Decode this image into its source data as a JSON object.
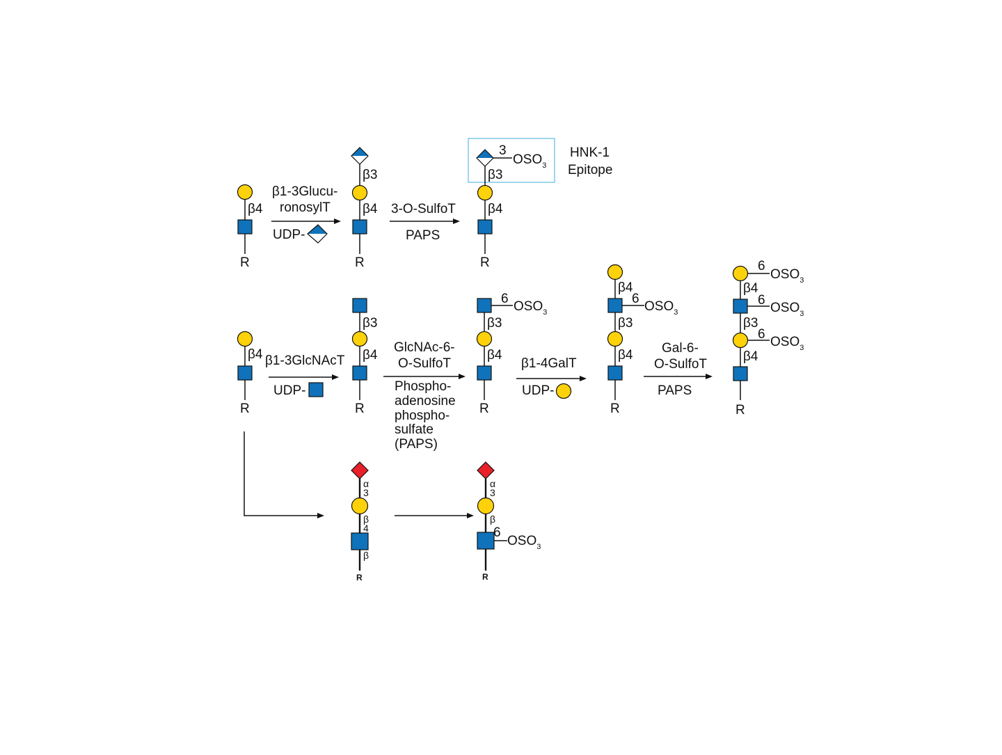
{
  "colors": {
    "galactose": "#FDD20A",
    "glcnac": "#0F72BA",
    "glucuronic_acid": "#0F72BA",
    "sialic_acid": "#E8202A",
    "hnk_box": "#7FC8E8"
  },
  "labels": {
    "R": "R",
    "b4": "β4",
    "b3": "β3",
    "pos3": "3",
    "pos6": "6",
    "oso": "OSO",
    "oso_sub": "3",
    "a": "α",
    "three": "3",
    "b": "β",
    "four": "4",
    "udp": "UDP-",
    "hnk1_line1": "HNK-1",
    "hnk1_line2": "Epitope"
  },
  "row1": {
    "enzyme1_line1": "β1-3Glucu-",
    "enzyme1_line2": "ronosylT",
    "enzyme2": "3-O-SulfoT",
    "donor2": "PAPS"
  },
  "row2": {
    "enzyme1": "β1-3GlcNAcT",
    "enzyme2_line1": "GlcNAc-6-",
    "enzyme2_line2": "O-SulfoT",
    "donor2_line1": "Phospho-",
    "donor2_line2": "adenosine",
    "donor2_line3": "phospho-",
    "donor2_line4": "sulfate",
    "donor2_line5": "(PAPS)",
    "enzyme3": "β1-4GalT",
    "enzyme4_line1": "Gal-6-",
    "enzyme4_line2": "O-SulfoT",
    "donor4": "PAPS"
  }
}
